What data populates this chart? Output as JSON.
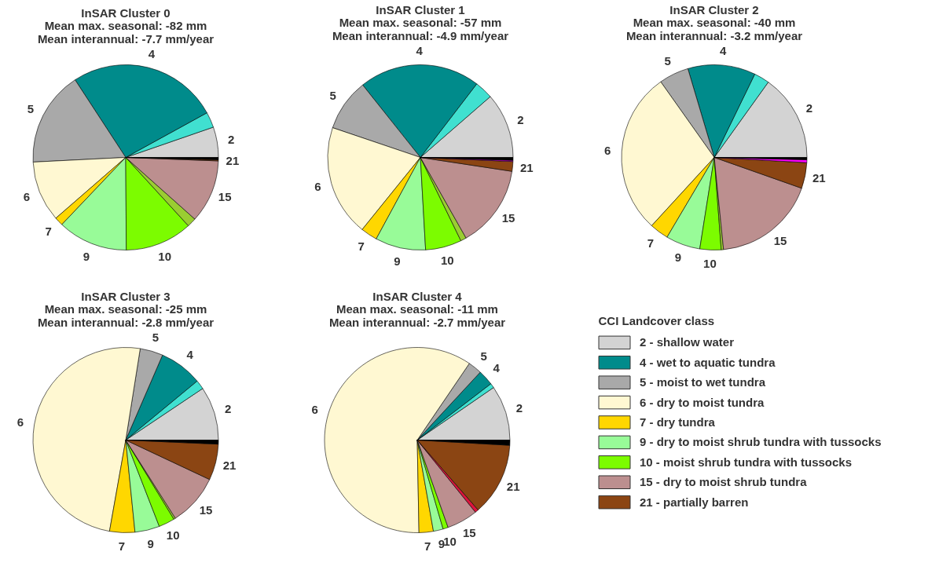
{
  "chart_data": [
    {
      "type": "pie",
      "title": "InSAR Cluster 0",
      "subtitle": "Mean max. seasonal: -82 mm\nMean interannual: -7.7 mm/year",
      "legend": false,
      "categories": [
        "2",
        null,
        "4",
        "5",
        "6",
        "7",
        "9",
        "10",
        null,
        "15",
        null,
        "21",
        null,
        null
      ],
      "values": [
        5.3,
        2.7,
        26.2,
        16.6,
        10.6,
        1.5,
        12.2,
        11.7,
        1.6,
        11.0,
        null,
        0.2,
        null,
        0.4
      ],
      "colors": [
        "#d3d3d3",
        "#40e0d0",
        "#008b8b",
        "#a9a9a9",
        "#fff8d2",
        "#ffd700",
        "#98fb98",
        "#7cfc00",
        "#9acd32",
        "#bc8f8f",
        "#dc143c",
        "#8b4513",
        "#ff00ff",
        "#000000"
      ]
    },
    {
      "type": "pie",
      "title": "InSAR Cluster 1",
      "subtitle": "Mean max. seasonal: -57 mm\nMean interannual: -4.9 mm/year",
      "legend": false,
      "categories": [
        "2",
        null,
        "4",
        "5",
        "6",
        "7",
        "9",
        "10",
        null,
        "15",
        null,
        "21",
        null,
        null
      ],
      "values": [
        11.4,
        3.2,
        21.1,
        9.1,
        19.4,
        2.9,
        8.8,
        6.3,
        1.0,
        14.4,
        null,
        1.7,
        0.2,
        0.5
      ],
      "colors": [
        "#d3d3d3",
        "#40e0d0",
        "#008b8b",
        "#a9a9a9",
        "#fff8d2",
        "#ffd700",
        "#98fb98",
        "#7cfc00",
        "#9acd32",
        "#bc8f8f",
        "#dc143c",
        "#8b4513",
        "#ff00ff",
        "#000000"
      ]
    },
    {
      "type": "pie",
      "title": "InSAR Cluster 2",
      "subtitle": "Mean max. seasonal: -40 mm\nMean interannual: -3.2 mm/year",
      "legend": false,
      "categories": [
        "2",
        null,
        "4",
        "5",
        "6",
        "7",
        "9",
        "10",
        null,
        "15",
        null,
        "21",
        null,
        null
      ],
      "values": [
        15.1,
        2.7,
        11.8,
        5.2,
        28.4,
        3.3,
        6.0,
        3.7,
        0.4,
        18.0,
        null,
        4.5,
        0.5,
        0.4
      ],
      "colors": [
        "#d3d3d3",
        "#40e0d0",
        "#008b8b",
        "#a9a9a9",
        "#fff8d2",
        "#ffd700",
        "#98fb98",
        "#7cfc00",
        "#9acd32",
        "#bc8f8f",
        "#dc143c",
        "#8b4513",
        "#ff00ff",
        "#000000"
      ]
    },
    {
      "type": "pie",
      "title": "InSAR Cluster 3",
      "subtitle": "Mean max. seasonal: -25 mm\nMean interannual: -2.8 mm/year",
      "legend": false,
      "categories": [
        "2",
        null,
        "4",
        "5",
        "6",
        "7",
        "9",
        "10",
        null,
        "15",
        null,
        "21",
        null,
        null
      ],
      "values": [
        9.4,
        1.6,
        7.5,
        4.0,
        49.7,
        4.4,
        4.3,
        2.8,
        0.3,
        9.0,
        null,
        6.3,
        null,
        0.7
      ],
      "colors": [
        "#d3d3d3",
        "#40e0d0",
        "#008b8b",
        "#a9a9a9",
        "#fff8d2",
        "#ffd700",
        "#98fb98",
        "#7cfc00",
        "#9acd32",
        "#bc8f8f",
        "#dc143c",
        "#8b4513",
        "#ff00ff",
        "#000000"
      ]
    },
    {
      "type": "pie",
      "title": "InSAR Cluster 4",
      "subtitle": "Mean max. seasonal: -11 mm\nMean interannual: -2.7 mm/year",
      "legend": false,
      "categories": [
        "2",
        null,
        "4",
        "5",
        "6",
        "7",
        "9",
        "10",
        null,
        "15",
        null,
        "21",
        null,
        null
      ],
      "values": [
        9.6,
        0.8,
        2.7,
        2.4,
        59.8,
        2.5,
        1.7,
        0.9,
        null,
        5.4,
        0.6,
        12.7,
        null,
        0.9
      ],
      "colors": [
        "#d3d3d3",
        "#40e0d0",
        "#008b8b",
        "#a9a9a9",
        "#fff8d2",
        "#ffd700",
        "#98fb98",
        "#7cfc00",
        "#9acd32",
        "#bc8f8f",
        "#dc143c",
        "#8b4513",
        "#ff00ff",
        "#000000"
      ]
    },
    {
      "type": "other",
      "title": "CCI Landcover class",
      "categories": [
        "2 - shallow water",
        "4 - wet to aquatic tundra",
        "5 - moist to wet tundra",
        "6 - dry to moist tundra",
        "7 - dry tundra",
        "9 - dry to moist shrub tundra with tussocks",
        "10 - moist shrub tundra with tussocks",
        "15 - dry to moist shrub tundra",
        "21 - partially barren"
      ],
      "colors": [
        "#d3d3d3",
        "#008b8b",
        "#a9a9a9",
        "#fff8d2",
        "#ffd700",
        "#98fb98",
        "#7cfc00",
        "#bc8f8f",
        "#8b4513"
      ]
    }
  ]
}
